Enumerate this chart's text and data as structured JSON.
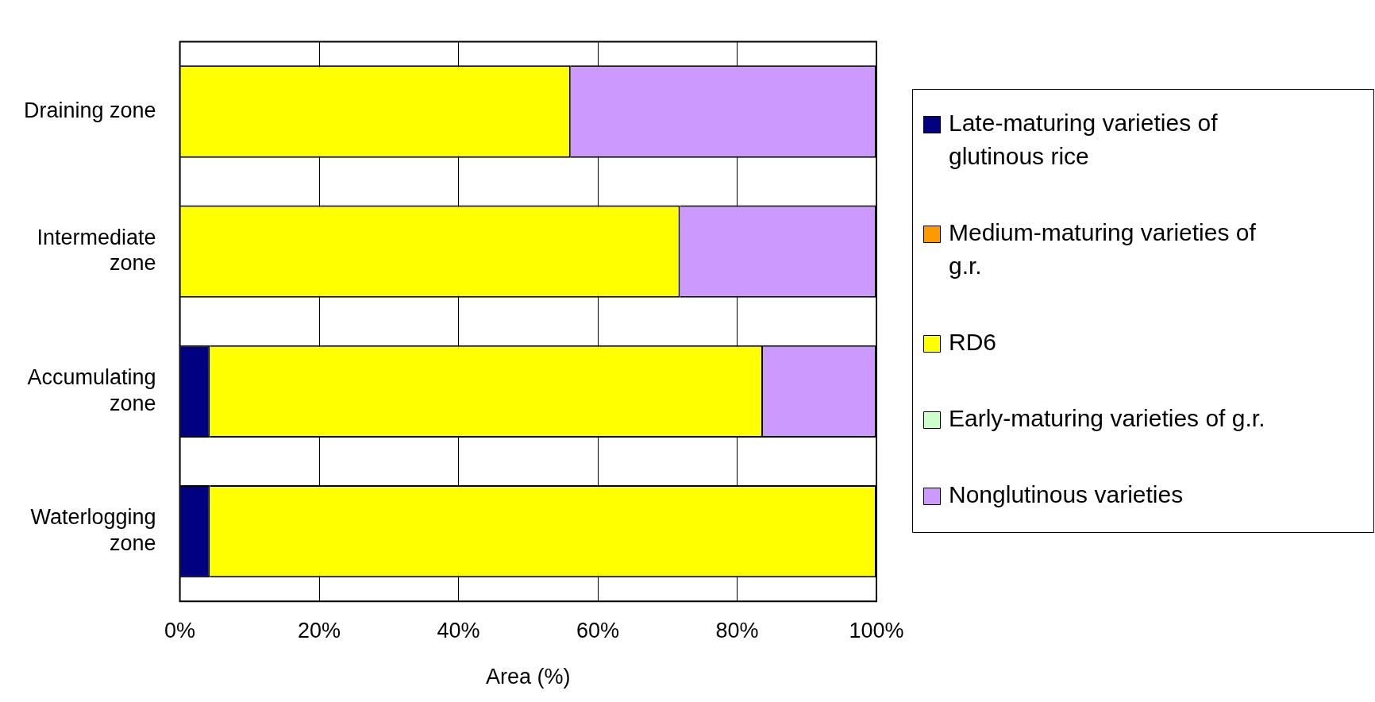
{
  "chart_data": {
    "type": "bar",
    "orientation": "horizontal",
    "stacked": true,
    "xlabel": "Area (%)",
    "categories": [
      "Draining zone",
      "Intermediate zone",
      "Accumulating zone",
      "Waterlogging zone"
    ],
    "series": [
      {
        "name": "Late-maturing varieties of glutinous rice",
        "color": "#000080",
        "values": [
          0,
          0,
          4.3,
          4.3
        ]
      },
      {
        "name": "Medium-maturing varieties of g.r.",
        "color": "#ff9900",
        "values": [
          0,
          0,
          0,
          0
        ]
      },
      {
        "name": "RD6",
        "color": "#ffff00",
        "values": [
          56.1,
          71.8,
          79.4,
          95.7
        ]
      },
      {
        "name": "Early-maturing varieties of g.r.",
        "color": "#ccffcc",
        "values": [
          0,
          0,
          0,
          0
        ]
      },
      {
        "name": "Nonglutinous varieties",
        "color": "#cc99ff",
        "values": [
          43.9,
          28.2,
          16.3,
          0
        ]
      }
    ],
    "xlim": [
      0,
      100
    ],
    "xticks": [
      {
        "value": 0,
        "label": "0%"
      },
      {
        "value": 20,
        "label": "20%"
      },
      {
        "value": 40,
        "label": "40%"
      },
      {
        "value": 60,
        "label": "60%"
      },
      {
        "value": 80,
        "label": "80%"
      },
      {
        "value": 100,
        "label": "100%"
      }
    ],
    "grid": "x",
    "legend": "right"
  }
}
